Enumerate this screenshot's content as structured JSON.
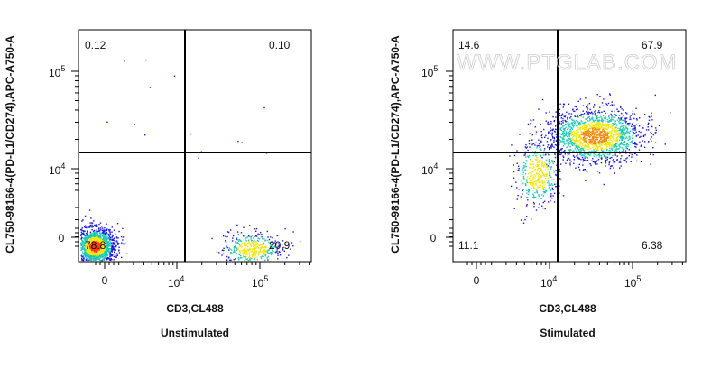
{
  "chart_data": [
    {
      "type": "scatter",
      "subtitle": "Unstimulated",
      "xlabel": "CD3,CL488",
      "ylabel": "CL750-98166-4(PD-L1/CD274),APC-A750-A",
      "x_ticks": [
        {
          "base": "0",
          "exp": ""
        },
        {
          "base": "10",
          "exp": "4"
        },
        {
          "base": "10",
          "exp": "5"
        }
      ],
      "y_ticks": [
        {
          "base": "0",
          "exp": ""
        },
        {
          "base": "10",
          "exp": "4"
        },
        {
          "base": "10",
          "exp": "5"
        }
      ],
      "quadrants": {
        "top_left": "0.12",
        "top_right": "0.10",
        "bottom_left": "78.8",
        "bottom_right": "20.9"
      },
      "clusters": [
        {
          "x": 900,
          "y": 300,
          "share": 0.79,
          "peak": "red"
        },
        {
          "x": 80000,
          "y": 400,
          "share": 0.21,
          "peak": "cyan"
        }
      ]
    },
    {
      "type": "scatter",
      "subtitle": "Stimulated",
      "xlabel": "CD3,CL488",
      "ylabel": "CL750-98166-4(PD-L1/CD274),APC-A750-A",
      "x_ticks": [
        {
          "base": "0",
          "exp": ""
        },
        {
          "base": "10",
          "exp": "4"
        },
        {
          "base": "10",
          "exp": "5"
        }
      ],
      "y_ticks": [
        {
          "base": "0",
          "exp": ""
        },
        {
          "base": "10",
          "exp": "4"
        },
        {
          "base": "10",
          "exp": "5"
        }
      ],
      "quadrants": {
        "top_left": "14.6",
        "top_right": "67.9",
        "bottom_left": "11.1",
        "bottom_right": "6.38"
      },
      "clusters": [
        {
          "x": 35000,
          "y": 22000,
          "share": 0.8,
          "peak": "orange"
        },
        {
          "x": 7000,
          "y": 9000,
          "share": 0.2,
          "peak": "cyan"
        }
      ]
    }
  ],
  "watermark": "WWW.PTGLAB.COM",
  "colors": {
    "low": "#1a1adc",
    "mid": "#1ec8b4",
    "high": "#f0e614",
    "peak": "#ff3c14",
    "gate": "#000000"
  }
}
